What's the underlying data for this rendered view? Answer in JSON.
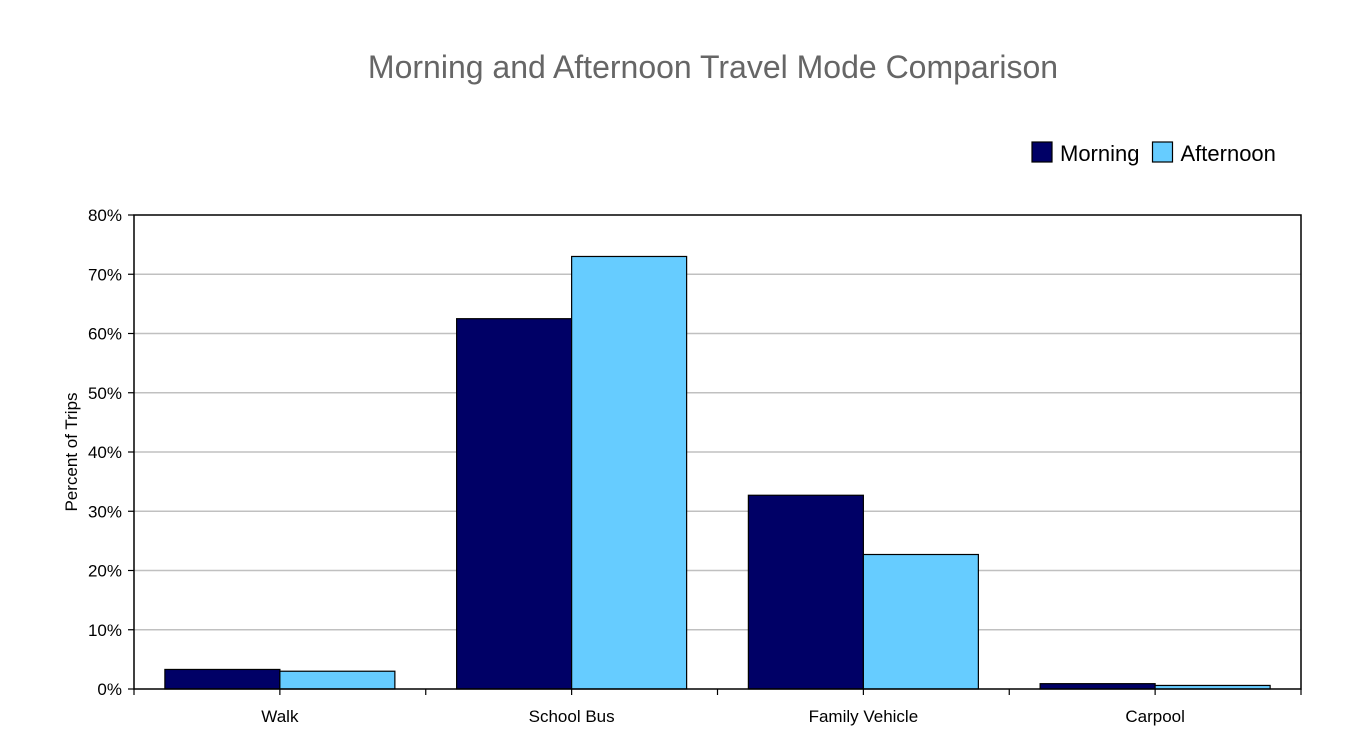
{
  "chart_data": {
    "type": "bar",
    "title": "Morning and Afternoon Travel Mode Comparison",
    "xlabel": "",
    "ylabel": "Percent of Trips",
    "categories": [
      "Walk",
      "School Bus",
      "Family Vehicle",
      "Carpool"
    ],
    "series": [
      {
        "name": "Morning",
        "values": [
          3.3,
          62.5,
          32.7,
          0.9
        ]
      },
      {
        "name": "Afternoon",
        "values": [
          3.0,
          73.0,
          22.7,
          0.6
        ]
      }
    ],
    "ylim": [
      0,
      80
    ],
    "yticks": [
      0,
      10,
      20,
      30,
      40,
      50,
      60,
      70,
      80
    ],
    "ytick_labels": [
      "0%",
      "10%",
      "20%",
      "30%",
      "40%",
      "50%",
      "60%",
      "70%",
      "80%"
    ],
    "grid": true,
    "legend_position": "top-right",
    "colors": {
      "Morning": "#000066",
      "Afternoon": "#66CCFF",
      "title": "#666666",
      "grid": "#c0c0c0"
    }
  }
}
